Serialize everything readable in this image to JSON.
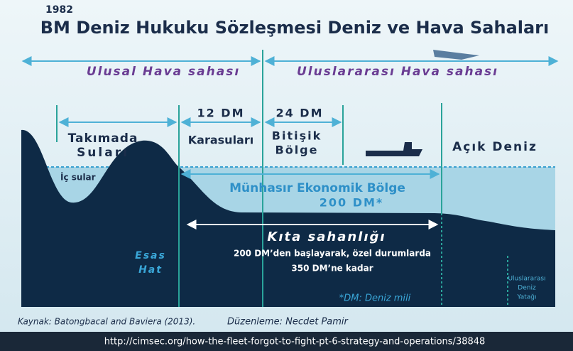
{
  "header": {
    "year": "1982",
    "title": "BM Deniz Hukuku Sözleşmesi Deniz ve Hava Sahaları"
  },
  "airspace": {
    "national": "Ulusal Hava sahası",
    "international": "Uluslararası Hava sahası"
  },
  "zones": {
    "territorial_distance": "12 DM",
    "contiguous_distance": "24 DM",
    "archipelagic": [
      "Takımada",
      "Suları"
    ],
    "territorial": "Karasuları",
    "contiguous": [
      "Bitişik",
      "Bölge"
    ],
    "high_seas": "Açık Deniz",
    "internal": "İç sular",
    "eez": "Münhasır Ekonomik Bölge",
    "eez_distance": "200 DM*",
    "shelf": "Kıta sahanlığı",
    "shelf_note": [
      "200 DM’den başlayarak, özel durumlarda",
      "350 DM’ne kadar"
    ],
    "baseline": [
      "Esas",
      "Hat"
    ],
    "footnote": "*DM: Deniz mili",
    "seabed": [
      "Uluslararası",
      "Deniz",
      "Yatağı"
    ]
  },
  "footer": {
    "source": "Kaynak: Batongbacal and Baviera (2013).",
    "editor": "Düzenleme: Necdet Pamir",
    "url": "http://cimsec.org/how-the-fleet-forgot-to-fight-pt-6-strategy-and-operations/38848"
  }
}
